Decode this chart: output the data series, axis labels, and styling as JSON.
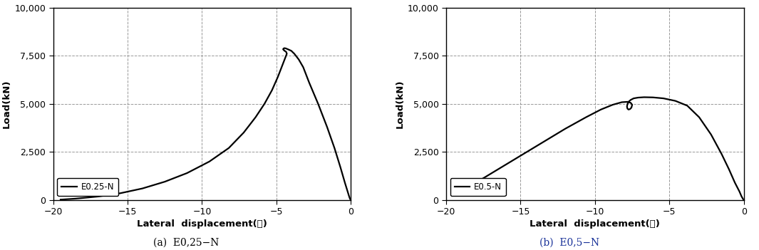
{
  "plot1": {
    "label": "E0.25-N",
    "caption": "(a)  E0,25−N",
    "caption_color": "#000000",
    "curve_x": [
      0.0,
      -0.05,
      -0.1,
      -0.2,
      -0.4,
      -0.7,
      -1.1,
      -1.6,
      -2.2,
      -2.8,
      -3.2,
      -3.5,
      -3.8,
      -4.0,
      -4.2,
      -4.35,
      -4.45,
      -4.52,
      -4.55,
      -4.52,
      -4.45,
      -4.35,
      -4.3,
      -4.4,
      -4.6,
      -4.9,
      -5.3,
      -5.8,
      -6.4,
      -7.2,
      -8.2,
      -9.5,
      -11.0,
      -12.5,
      -14.0,
      -15.5,
      -17.0,
      -18.5,
      -19.5
    ],
    "curve_y": [
      0,
      50,
      150,
      400,
      900,
      1700,
      2700,
      3800,
      5000,
      6100,
      6900,
      7300,
      7600,
      7750,
      7820,
      7870,
      7890,
      7870,
      7830,
      7800,
      7750,
      7700,
      7600,
      7400,
      7000,
      6400,
      5700,
      5000,
      4300,
      3500,
      2700,
      2000,
      1400,
      950,
      600,
      350,
      180,
      70,
      20
    ]
  },
  "plot2": {
    "label": "E0.5-N",
    "caption": "(b)  E0,5−N",
    "caption_color": "#1a3399",
    "curve_x": [
      0.0,
      -0.05,
      -0.15,
      -0.3,
      -0.6,
      -1.0,
      -1.5,
      -2.2,
      -3.0,
      -3.8,
      -4.6,
      -5.4,
      -6.1,
      -6.7,
      -7.1,
      -7.4,
      -7.6,
      -7.75,
      -7.82,
      -7.85,
      -7.82,
      -7.75,
      -7.65,
      -7.55,
      -7.5,
      -7.6,
      -7.8,
      -8.2,
      -8.8,
      -9.6,
      -10.6,
      -12.0,
      -13.5,
      -15.0,
      -16.5,
      -18.0,
      -19.2
    ],
    "curve_y": [
      0,
      50,
      180,
      450,
      900,
      1600,
      2400,
      3400,
      4300,
      4900,
      5150,
      5280,
      5330,
      5340,
      5320,
      5280,
      5200,
      5100,
      4980,
      4850,
      4750,
      4700,
      4720,
      4800,
      4950,
      5050,
      5100,
      5080,
      4950,
      4700,
      4300,
      3700,
      3000,
      2300,
      1600,
      900,
      350
    ]
  },
  "xlim": [
    -20,
    0
  ],
  "ylim": [
    0,
    10000
  ],
  "xticks": [
    -20,
    -15,
    -10,
    -5,
    0
  ],
  "yticks": [
    0,
    2500,
    5000,
    7500,
    10000
  ],
  "xlabel": "Lateral  displacement(㎜)",
  "ylabel": "Load(kN)",
  "grid_color": "#999999",
  "line_color": "#000000"
}
